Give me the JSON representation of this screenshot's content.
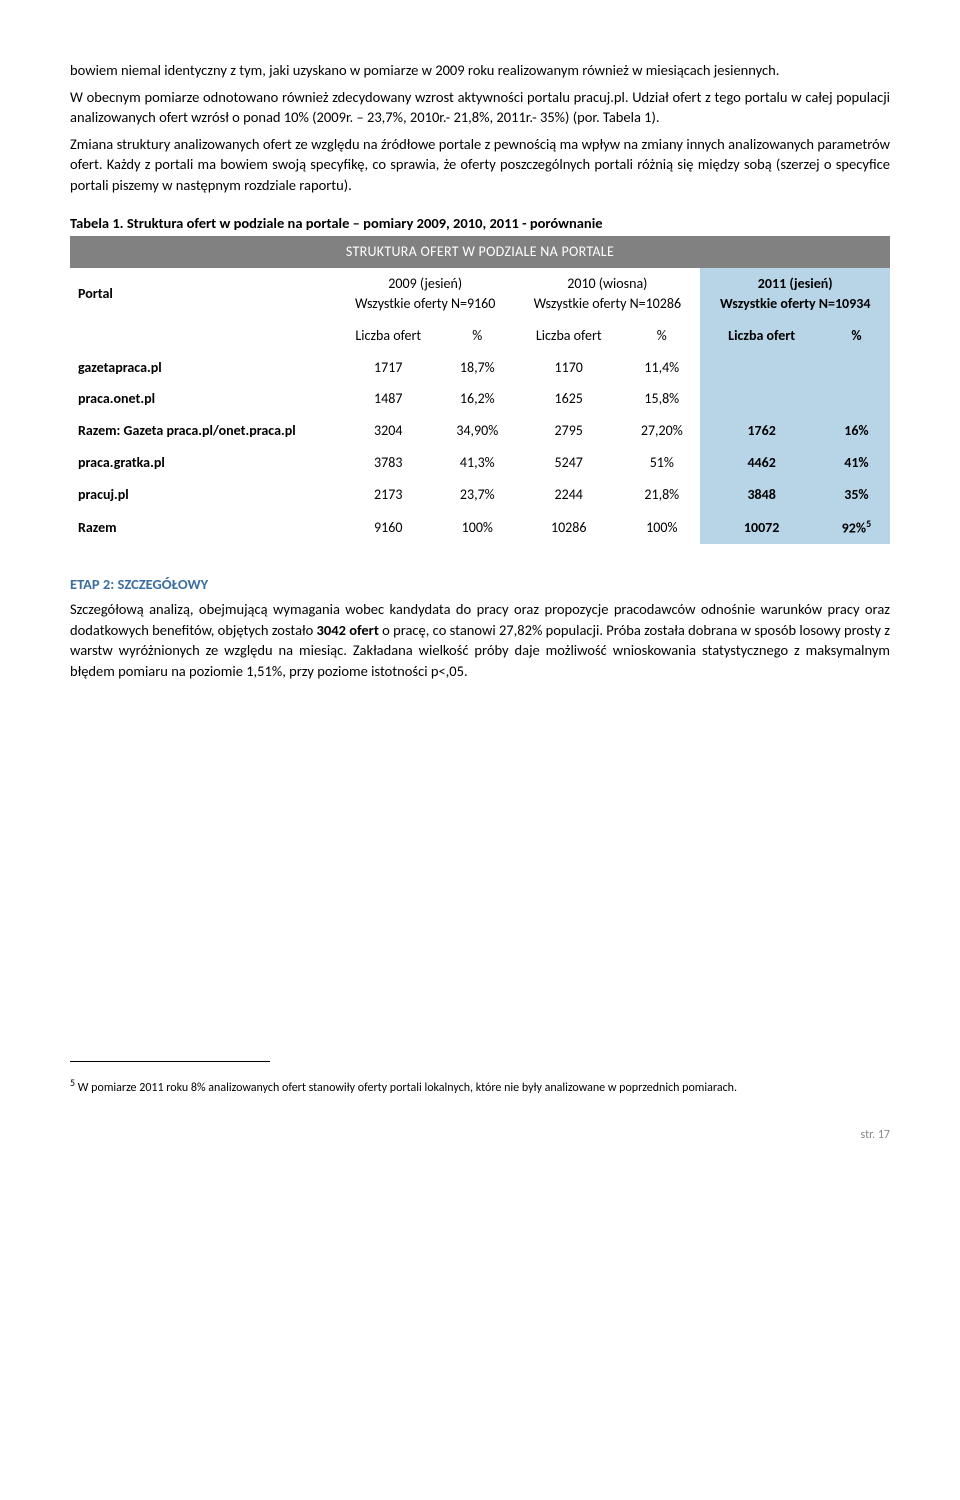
{
  "intro": {
    "p1": "bowiem niemal identyczny z tym, jaki uzyskano w pomiarze w 2009 roku realizowanym również w miesiącach jesiennych.",
    "p2": "W obecnym pomiarze odnotowano również zdecydowany wzrost aktywności portalu pracuj.pl. Udział ofert z tego portalu w całej populacji analizowanych ofert wzrósł o ponad 10% (2009r. – 23,7%, 2010r.- 21,8%, 2011r.- 35%) (por. Tabela 1).",
    "p3": "Zmiana struktury analizowanych ofert ze względu na źródłowe portale z pewnością ma wpływ na zmiany innych analizowanych parametrów ofert. Każdy z portali ma bowiem swoją specyfikę, co sprawia, że oferty poszczególnych portali różnią się między sobą (szerzej o specyfice portali piszemy w następnym rozdziale raportu)."
  },
  "table": {
    "caption": "Tabela 1. Struktura ofert w podziale na portale – pomiary 2009, 2010, 2011 - porównanie",
    "banner": "STRUKTURA OFERT W PODZIALE NA PORTALE",
    "header": {
      "portal": "Portal",
      "c2009_top": "2009 (jesień)",
      "c2009_sub": "Wszystkie oferty N=9160",
      "c2010_top": "2010 (wiosna)",
      "c2010_sub": "Wszystkie oferty N=10286",
      "c2011_top": "2011 (jesień)",
      "c2011_sub": "Wszystkie oferty N=10934",
      "liczba": "Liczba ofert",
      "pct": "%",
      "liczba2": "Liczba ofert",
      "pct2": "%",
      "liczba3": "Liczba ofert",
      "pct3": "%"
    },
    "rows": [
      {
        "label": "gazetapraca.pl",
        "n1": "1717",
        "p1": "18,7%",
        "n2": "1170",
        "p2": "11,4%",
        "n3": "",
        "p3": ""
      },
      {
        "label": "praca.onet.pl",
        "n1": "1487",
        "p1": "16,2%",
        "n2": "1625",
        "p2": "15,8%",
        "n3": "",
        "p3": ""
      },
      {
        "label": "Razem: Gazeta praca.pl/onet.praca.pl",
        "n1": "3204",
        "p1": "34,90%",
        "n2": "2795",
        "p2": "27,20%",
        "n3": "1762",
        "p3": "16%"
      },
      {
        "label": "praca.gratka.pl",
        "n1": "3783",
        "p1": "41,3%",
        "n2": "5247",
        "p2": "51%",
        "n3": "4462",
        "p3": "41%"
      },
      {
        "label": "pracuj.pl",
        "n1": "2173",
        "p1": "23,7%",
        "n2": "2244",
        "p2": "21,8%",
        "n3": "3848",
        "p3": "35%"
      },
      {
        "label": "Razem",
        "n1": "9160",
        "p1": "100%",
        "n2": "10286",
        "p2": "100%",
        "n3": "10072",
        "p3": "92%"
      }
    ],
    "sup5": "5"
  },
  "etap": {
    "title": "ETAP 2: SZCZEGÓŁOWY",
    "body_a": "Szczegółową analizą, obejmującą wymagania wobec kandydata do pracy oraz propozycje pracodawców odnośnie warunków pracy oraz dodatkowych benefitów, objętych zostało ",
    "body_bold": "3042 ofert",
    "body_b": " o pracę, co stanowi 27,82% populacji. Próba została dobrana w sposób losowy prosty z warstw wyróżnionych ze względu na miesiąc. Zakładana wielkość próby daje możliwość wnioskowania statystycznego z maksymalnym błędem pomiaru na poziomie 1,51%, przy poziome istotności p<,05."
  },
  "footnote": {
    "num": "5",
    "text": " W pomiarze 2011 roku 8% analizowanych ofert stanowiły oferty portali lokalnych, które nie były analizowane w poprzednich pomiarach."
  },
  "page": "str. 17"
}
